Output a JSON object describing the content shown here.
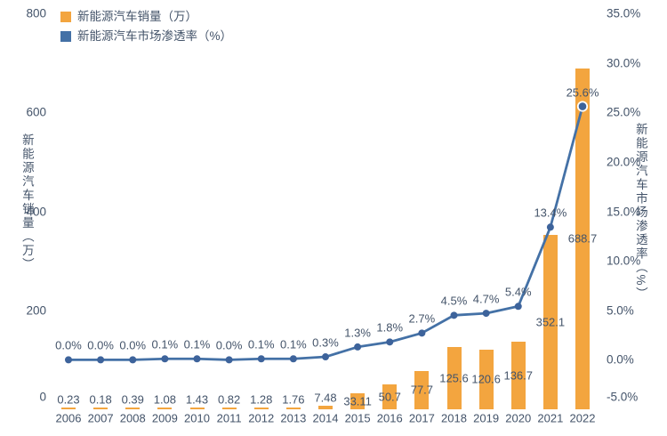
{
  "colors": {
    "bar": "#F3A53F",
    "line": "#4471A6",
    "point": "#3D639B",
    "text": "#44546A",
    "background": "#FFFFFF"
  },
  "chart_data": {
    "type": "combo",
    "title": "",
    "grid": false,
    "legend_position": "top-left",
    "categories": [
      "2006",
      "2007",
      "2008",
      "2009",
      "2010",
      "2011",
      "2012",
      "2013",
      "2014",
      "2015",
      "2016",
      "2017",
      "2018",
      "2019",
      "2020",
      "2021",
      "2022"
    ],
    "series": [
      {
        "name": "新能源汽车销量（万）",
        "type": "bar",
        "axis": "left",
        "color": "#F3A53F",
        "values": [
          0.23,
          0.18,
          0.39,
          1.08,
          1.43,
          0.82,
          1.28,
          1.76,
          7.48,
          33.11,
          50.7,
          77.7,
          125.6,
          120.6,
          136.7,
          352.1,
          688.7
        ],
        "labels": [
          "0.23",
          "0.18",
          "0.39",
          "1.08",
          "1.43",
          "0.82",
          "1.28",
          "1.76",
          "7.48",
          "33.11",
          "50.7",
          "77.7",
          "125.6",
          "120.6",
          "136.7",
          "352.1",
          "688.7"
        ]
      },
      {
        "name": "新能源汽车市场渗透率（%）",
        "type": "line",
        "axis": "right",
        "color": "#4471A6",
        "values": [
          0.0,
          0.0,
          0.0,
          0.1,
          0.1,
          0.0,
          0.1,
          0.1,
          0.3,
          1.3,
          1.8,
          2.7,
          4.5,
          4.7,
          5.4,
          13.4,
          25.6
        ],
        "labels": [
          "0.0%",
          "0.0%",
          "0.0%",
          "0.1%",
          "0.1%",
          "0.0%",
          "0.1%",
          "0.1%",
          "0.3%",
          "1.3%",
          "1.8%",
          "2.7%",
          "4.5%",
          "4.7%",
          "5.4%",
          "13.4%",
          "25.6%"
        ]
      }
    ],
    "left_axis": {
      "title": "新能源汽车销量（万）",
      "min": 0,
      "max": 800,
      "tick_values": [
        0,
        200,
        400,
        600,
        800
      ],
      "tick_labels": [
        "0",
        "200",
        "400",
        "600",
        "800"
      ]
    },
    "right_axis": {
      "title": "新能源汽车市场渗透率（%）",
      "min": -5,
      "max": 35,
      "tick_values": [
        -5,
        0,
        5,
        10,
        15,
        20,
        25,
        30,
        35
      ],
      "tick_labels": [
        "-5.0%",
        "0.0%",
        "5.0%",
        "10.0%",
        "15.0%",
        "20.0%",
        "25.0%",
        "30.0%",
        "35.0%"
      ]
    }
  }
}
